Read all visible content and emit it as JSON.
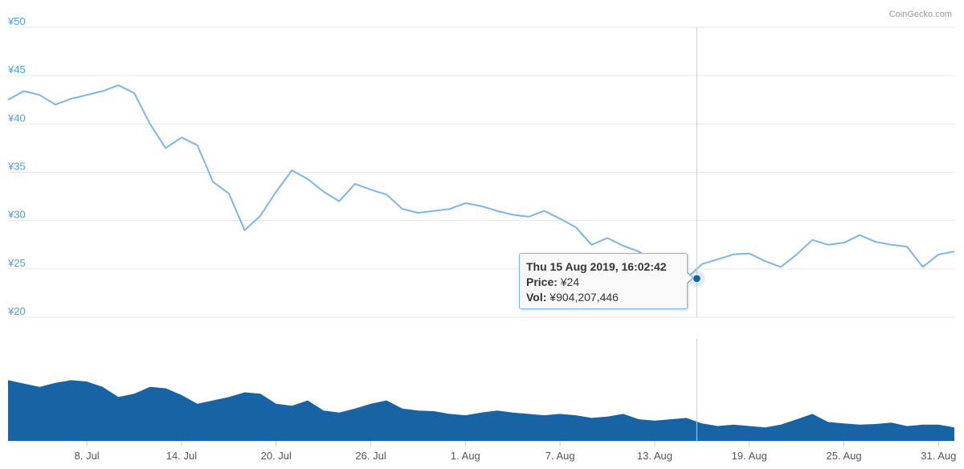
{
  "credit": "CoinGecko.com",
  "chart_data": {
    "type": "line",
    "title": "",
    "xlabel": "",
    "ylabel": "",
    "currency_prefix": "¥",
    "ylim": [
      20,
      50
    ],
    "y_ticks": [
      "¥50",
      "¥45",
      "¥40",
      "¥35",
      "¥30",
      "¥25",
      "¥20"
    ],
    "y_tick_values": [
      50,
      45,
      40,
      35,
      30,
      25,
      20
    ],
    "xlim": [
      "2019-07-03",
      "2019-09-01"
    ],
    "x_ticks": [
      "8. Jul",
      "14. Jul",
      "20. Jul",
      "26. Jul",
      "1. Aug",
      "7. Aug",
      "13. Aug",
      "19. Aug",
      "25. Aug",
      "31. Aug"
    ],
    "x_tick_dates": [
      "2019-07-08",
      "2019-07-14",
      "2019-07-20",
      "2019-07-26",
      "2019-08-01",
      "2019-08-07",
      "2019-08-13",
      "2019-08-19",
      "2019-08-25",
      "2019-08-31"
    ],
    "grid": true,
    "legend": "none",
    "colors": {
      "price_line": "#7cb5ec",
      "volume_area": "#1863a3",
      "axis_text": "#4aa3df",
      "crosshair": "#cccccc"
    },
    "series": [
      {
        "kind": "price",
        "x": [
          "2019-07-03",
          "2019-07-04",
          "2019-07-05",
          "2019-07-06",
          "2019-07-07",
          "2019-07-08",
          "2019-07-09",
          "2019-07-10",
          "2019-07-11",
          "2019-07-12",
          "2019-07-13",
          "2019-07-14",
          "2019-07-15",
          "2019-07-16",
          "2019-07-17",
          "2019-07-18",
          "2019-07-19",
          "2019-07-20",
          "2019-07-21",
          "2019-07-22",
          "2019-07-23",
          "2019-07-24",
          "2019-07-25",
          "2019-07-26",
          "2019-07-27",
          "2019-07-28",
          "2019-07-29",
          "2019-07-30",
          "2019-07-31",
          "2019-08-01",
          "2019-08-02",
          "2019-08-03",
          "2019-08-04",
          "2019-08-05",
          "2019-08-06",
          "2019-08-07",
          "2019-08-08",
          "2019-08-09",
          "2019-08-10",
          "2019-08-11",
          "2019-08-12",
          "2019-08-13",
          "2019-08-14",
          "2019-08-15",
          "2019-08-16",
          "2019-08-17",
          "2019-08-18",
          "2019-08-19",
          "2019-08-20",
          "2019-08-21",
          "2019-08-22",
          "2019-08-23",
          "2019-08-24",
          "2019-08-25",
          "2019-08-26",
          "2019-08-27",
          "2019-08-28",
          "2019-08-29",
          "2019-08-30",
          "2019-08-31",
          "2019-09-01"
        ],
        "values": [
          42.5,
          43.4,
          43.0,
          42.0,
          42.6,
          43.0,
          43.4,
          44.0,
          43.2,
          40.0,
          37.5,
          38.6,
          37.8,
          34.0,
          32.8,
          29.0,
          30.5,
          33.0,
          35.2,
          34.3,
          33.0,
          32.0,
          33.8,
          33.2,
          32.7,
          31.2,
          30.8,
          31.0,
          31.2,
          31.8,
          31.5,
          31.0,
          30.6,
          30.4,
          31.0,
          30.2,
          29.3,
          27.5,
          28.2,
          27.4,
          26.8,
          25.5,
          24.8,
          24.0,
          25.5,
          26.0,
          26.5,
          26.6,
          25.8,
          25.2,
          26.5,
          28.0,
          27.5,
          27.7,
          28.5,
          27.8,
          27.5,
          27.3,
          25.2,
          26.5,
          26.8
        ]
      },
      {
        "kind": "volume",
        "values_relative": [
          0.9,
          0.85,
          0.8,
          0.86,
          0.9,
          0.88,
          0.8,
          0.65,
          0.7,
          0.8,
          0.78,
          0.68,
          0.55,
          0.6,
          0.65,
          0.72,
          0.7,
          0.55,
          0.52,
          0.6,
          0.45,
          0.42,
          0.48,
          0.55,
          0.6,
          0.48,
          0.45,
          0.44,
          0.4,
          0.38,
          0.42,
          0.45,
          0.42,
          0.4,
          0.38,
          0.4,
          0.38,
          0.34,
          0.36,
          0.4,
          0.32,
          0.3,
          0.32,
          0.34,
          0.26,
          0.22,
          0.24,
          0.22,
          0.2,
          0.24,
          0.32,
          0.4,
          0.28,
          0.26,
          0.24,
          0.25,
          0.27,
          0.22,
          0.24,
          0.24,
          0.2
        ]
      }
    ],
    "tooltip": {
      "date": "Thu 15 Aug 2019, 16:02:42",
      "price_label": "Price:",
      "price_value": "¥24",
      "vol_label": "Vol:",
      "vol_value": "¥904,207,446"
    },
    "hover_point": {
      "x": "2019-08-15",
      "y": 24
    }
  }
}
